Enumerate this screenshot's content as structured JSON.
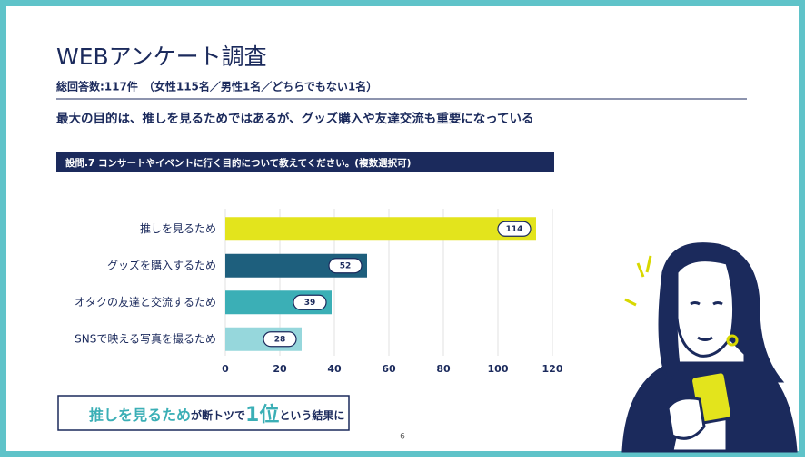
{
  "slide": {
    "title": "WEBアンケート調査",
    "subtitle": "総回答数:117件　（女性115名／男性1名／どちらでもない1名）",
    "headline": "最大の目的は、推しを見るためではあるが、グッズ購入や友達交流も重要になっている",
    "question": "設問.7  コンサートやイベントに行く目的について教えてください。(複数選択可)",
    "conclusion": [
      "推しを見るため",
      "が断トツで",
      "1位",
      "という結果に"
    ],
    "page_number": "6"
  },
  "chart_data": {
    "type": "hbar",
    "categories": [
      "推しを見るため",
      "グッズを購入するため",
      "オタクの友達と交流するため",
      "SNSで映える写真を撮るため"
    ],
    "values": [
      114,
      52,
      39,
      28
    ],
    "colors": [
      "#e3e41c",
      "#1e5f7d",
      "#3bafb6",
      "#96d7dc"
    ],
    "xlim": [
      0,
      120
    ],
    "xticks": [
      0,
      20,
      40,
      60,
      80,
      100,
      120
    ],
    "grid": true
  }
}
